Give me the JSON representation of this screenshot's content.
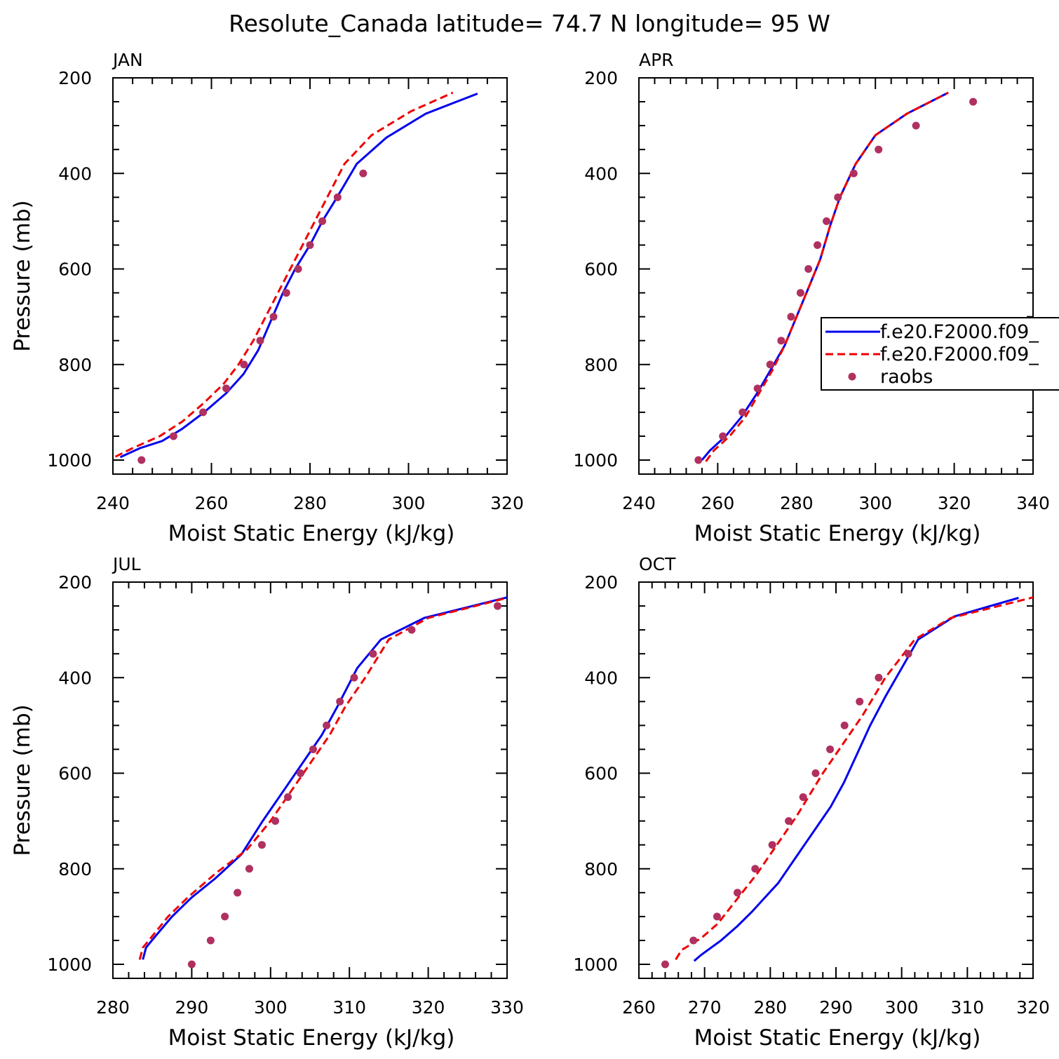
{
  "figure": {
    "title": "Resolute_Canada  latitude= 74.7 N longitude= 95 W"
  },
  "legend": {
    "entries": [
      {
        "label": "f.e20.F2000.f09_",
        "style": "solid",
        "color": "#0000ee"
      },
      {
        "label": "f.e20.F2000.f09_",
        "style": "dashed",
        "color": "#ee0000"
      },
      {
        "label": "raobs",
        "style": "dot",
        "color": "#b03060"
      }
    ]
  },
  "colors": {
    "model_solid": "#0000ee",
    "model_dashed": "#ee0000",
    "obs": "#b03060"
  },
  "chart_data": [
    {
      "type": "line",
      "panel": "JAN",
      "xlabel": "Moist Static Energy (kJ/kg)",
      "ylabel": "Pressure (mb)",
      "xlim": [
        240,
        320
      ],
      "ylim": [
        200,
        1000
      ],
      "xticks": [
        240,
        260,
        280,
        300,
        320
      ],
      "yticks": [
        200,
        400,
        600,
        800,
        1000
      ],
      "series": [
        {
          "name": "f.e20.F2000.f09_ (solid)",
          "style": "solid",
          "x": [
            241.5,
            245.5,
            250,
            254,
            258.5,
            263,
            266.5,
            269.5,
            272,
            274.5,
            277,
            280,
            282.5,
            285.5,
            289.5,
            295.5,
            303.5,
            314.0
          ],
          "y": [
            994,
            975,
            960,
            935,
            900,
            860,
            820,
            770,
            710,
            650,
            600,
            550,
            500,
            450,
            380,
            325,
            275,
            233
          ]
        },
        {
          "name": "f.e20.F2000.f09_ (dashed)",
          "style": "dashed",
          "x": [
            240.5,
            244,
            249.5,
            254,
            258.5,
            262.5,
            265.5,
            268.5,
            271,
            273.5,
            276,
            278.5,
            281,
            283.5,
            287,
            292.5,
            300.5,
            309.0
          ],
          "y": [
            993,
            975,
            950,
            920,
            880,
            840,
            800,
            750,
            700,
            650,
            600,
            550,
            500,
            450,
            380,
            320,
            270,
            231
          ]
        },
        {
          "name": "raobs",
          "style": "dot",
          "x": [
            245.8,
            252.3,
            258.3,
            263.0,
            266.6,
            269.9,
            272.6,
            275.2,
            277.6,
            280.0,
            282.5,
            285.6,
            290.8
          ],
          "y": [
            1000,
            950,
            900,
            850,
            800,
            750,
            700,
            650,
            600,
            550,
            500,
            450,
            400
          ]
        }
      ]
    },
    {
      "type": "line",
      "panel": "APR",
      "xlabel": "Moist Static Energy (kJ/kg)",
      "ylabel": "Pressure (mb)",
      "xlim": [
        240,
        340
      ],
      "ylim": [
        200,
        1000
      ],
      "xticks": [
        240,
        260,
        280,
        300,
        320,
        340
      ],
      "yticks": [
        200,
        400,
        600,
        800,
        1000
      ],
      "series": [
        {
          "name": "f.e20.F2000.f09_ (solid)",
          "style": "solid",
          "x": [
            256.0,
            258,
            262,
            266,
            270,
            273.5,
            277,
            280,
            283,
            286,
            288.5,
            291,
            295,
            300,
            308,
            318
          ],
          "y": [
            1000,
            980,
            950,
            910,
            860,
            810,
            760,
            700,
            640,
            580,
            510,
            450,
            380,
            320,
            275,
            233
          ]
        },
        {
          "name": "f.e20.F2000.f09_ (dashed)",
          "style": "dashed",
          "x": [
            257.0,
            259,
            263,
            267,
            270.5,
            274,
            277,
            280,
            283,
            286,
            288.5,
            291,
            295,
            300,
            308,
            318.5
          ],
          "y": [
            1003,
            980,
            950,
            910,
            860,
            810,
            760,
            700,
            640,
            580,
            510,
            450,
            380,
            320,
            275,
            231
          ]
        },
        {
          "name": "raobs",
          "style": "dot",
          "x": [
            255.1,
            261.3,
            266.3,
            270.1,
            273.3,
            276.1,
            278.6,
            281.0,
            283.0,
            285.3,
            287.6,
            290.5,
            294.5,
            300.8,
            310.3,
            324.8
          ],
          "y": [
            1000,
            950,
            900,
            850,
            800,
            750,
            700,
            650,
            600,
            550,
            500,
            450,
            400,
            350,
            300,
            250
          ]
        }
      ]
    },
    {
      "type": "line",
      "panel": "JUL",
      "xlabel": "Moist Static Energy (kJ/kg)",
      "ylabel": "Pressure (mb)",
      "xlim": [
        280,
        330
      ],
      "ylim": [
        200,
        1000
      ],
      "xticks": [
        280,
        290,
        300,
        310,
        320,
        330
      ],
      "yticks": [
        200,
        400,
        600,
        800,
        1000
      ],
      "series": [
        {
          "name": "f.e20.F2000.f09_ (solid)",
          "style": "solid",
          "x": [
            283.8,
            284.2,
            285.2,
            287.5,
            290.0,
            293,
            296.3,
            299,
            301.5,
            304,
            306.5,
            308.5,
            311,
            314,
            319.5,
            330.0
          ],
          "y": [
            990,
            965,
            945,
            900,
            860,
            820,
            770,
            700,
            640,
            580,
            520,
            460,
            380,
            320,
            275,
            232
          ]
        },
        {
          "name": "f.e20.F2000.f09_ (dashed)",
          "style": "dashed",
          "x": [
            283.4,
            283.8,
            284.8,
            287.0,
            289.5,
            293,
            297,
            300,
            302.5,
            305,
            307.5,
            309.5,
            312,
            315,
            320.0,
            330.5
          ],
          "y": [
            990,
            965,
            945,
            900,
            860,
            810,
            760,
            700,
            640,
            580,
            520,
            460,
            400,
            320,
            275,
            231
          ]
        },
        {
          "name": "raobs",
          "style": "dot",
          "x": [
            290.0,
            292.4,
            294.2,
            295.8,
            297.3,
            298.9,
            300.6,
            302.2,
            303.8,
            305.4,
            307.1,
            308.8,
            310.6,
            313.0,
            317.9,
            328.8
          ],
          "y": [
            1000,
            950,
            900,
            850,
            800,
            750,
            700,
            650,
            600,
            550,
            500,
            450,
            400,
            350,
            300,
            250
          ]
        }
      ]
    },
    {
      "type": "line",
      "panel": "OCT",
      "xlabel": "Moist Static Energy (kJ/kg)",
      "ylabel": "Pressure (mb)",
      "xlim": [
        260,
        320
      ],
      "ylim": [
        200,
        1000
      ],
      "xticks": [
        260,
        270,
        280,
        290,
        300,
        310,
        320
      ],
      "yticks": [
        200,
        400,
        600,
        800,
        1000
      ],
      "series": [
        {
          "name": "f.e20.F2000.f09_ (solid)",
          "style": "solid",
          "x": [
            268.4,
            269.5,
            272.5,
            275.0,
            277.2,
            279.2,
            281.2,
            283.2,
            285.2,
            287.2,
            289.2,
            291.2,
            293.2,
            295.2,
            297.5,
            302.5,
            308.0,
            317.8
          ],
          "y": [
            993,
            980,
            950,
            920,
            890,
            860,
            830,
            790,
            750,
            710,
            670,
            620,
            560,
            500,
            440,
            320,
            272,
            233
          ]
        },
        {
          "name": "f.e20.F2000.f09_ (dashed)",
          "style": "dashed",
          "x": [
            265.6,
            266.5,
            269.5,
            272.0,
            274.0,
            276.0,
            278.0,
            280.0,
            282.0,
            284.0,
            286.0,
            288.0,
            290.0,
            292.0,
            294.0,
            297.5,
            302.0,
            307.5,
            320.0
          ],
          "y": [
            990,
            970,
            945,
            915,
            880,
            845,
            810,
            770,
            730,
            690,
            645,
            600,
            560,
            520,
            480,
            400,
            320,
            275,
            232
          ]
        },
        {
          "name": "raobs",
          "style": "dot",
          "x": [
            264.0,
            268.3,
            271.9,
            275.0,
            277.7,
            280.3,
            282.8,
            285.0,
            286.9,
            289.1,
            291.3,
            293.6,
            296.5,
            301.0
          ],
          "y": [
            1000,
            950,
            900,
            850,
            800,
            750,
            700,
            650,
            600,
            550,
            500,
            450,
            400,
            350
          ]
        }
      ]
    }
  ]
}
